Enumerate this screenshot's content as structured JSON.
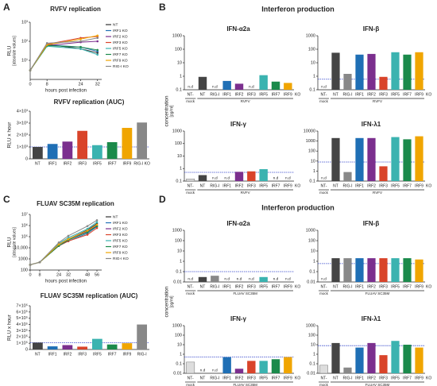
{
  "chart_data": [
    {
      "type": "line",
      "panel": "A",
      "title": "RVFV replication",
      "ylabel": "RLU",
      "ylabel_sub": "[absolute values]",
      "xlabel": "hours post infection",
      "log": true,
      "x": [
        0,
        8,
        24,
        32
      ],
      "xlim": [
        0,
        34
      ],
      "xticks": [
        0,
        8,
        24,
        32
      ],
      "ylim": [
        1,
        1000
      ],
      "yticks": [
        {
          "value": 10,
          "label": "10¹"
        },
        {
          "value": 100,
          "label": "10²"
        },
        {
          "value": 1000,
          "label": "10³"
        }
      ],
      "series": [
        {
          "name": "NT",
          "color": "#333333",
          "values": [
            3,
            70,
            40,
            25
          ]
        },
        {
          "name": "IRF1 KO",
          "color": "#1f6fb5",
          "values": [
            3,
            65,
            50,
            30
          ]
        },
        {
          "name": "IRF2 KO",
          "color": "#7b2f8e",
          "values": [
            3,
            60,
            90,
            100
          ]
        },
        {
          "name": "IRF3 KO",
          "color": "#d9442a",
          "values": [
            3,
            70,
            150,
            180
          ]
        },
        {
          "name": "IRF5 KO",
          "color": "#3bb3b0",
          "values": [
            3,
            55,
            40,
            20
          ]
        },
        {
          "name": "IRF7 KO",
          "color": "#1b8a4b",
          "values": [
            3,
            60,
            50,
            35
          ]
        },
        {
          "name": "IRF9 KO",
          "color": "#f0a500",
          "values": [
            3,
            65,
            130,
            200
          ]
        },
        {
          "name": "RIG-I KO",
          "color": "#888888",
          "values": [
            3,
            80,
            100,
            150
          ]
        }
      ]
    },
    {
      "type": "bar",
      "title": "RVFV replication (AUC)",
      "ylabel": "RLU x hour",
      "categories": [
        "NT",
        "IRF1",
        "IRF2",
        "IRF3",
        "IRF5",
        "IRF7",
        "IRF9",
        "RIG-I KO"
      ],
      "values": [
        1000,
        1250,
        1450,
        2350,
        1150,
        1400,
        2600,
        3050
      ],
      "colors": [
        "#444444",
        "#1f6fb5",
        "#7b2f8e",
        "#d9442a",
        "#3bb3b0",
        "#1b8a4b",
        "#f0a500",
        "#888888"
      ],
      "ylim": [
        0,
        4000
      ],
      "yticks": [
        0,
        {
          "value": 1000,
          "label": "1×10³"
        },
        {
          "value": 2000,
          "label": "2×10³"
        },
        {
          "value": 3000,
          "label": "3×10³"
        },
        {
          "value": 4000,
          "label": "4×10³"
        }
      ],
      "threshold": 1000
    },
    {
      "type": "bar",
      "panel": "B",
      "section_title": "Interferon production",
      "ylabel": "concentration",
      "ylabel_sub": "[pg/ml]",
      "title": "IFN-α2a",
      "log": true,
      "categories": [
        "NT-",
        "NT",
        "RIG-I",
        "IRF1",
        "IRF2",
        "IRF3",
        "IRF5",
        "IRF7",
        "IRF9"
      ],
      "axis_suffix": "KO",
      "group_labels": [
        "mock",
        "RVFV"
      ],
      "values": [
        null,
        0.9,
        null,
        0.45,
        0.28,
        null,
        1.2,
        0.4,
        0.32
      ],
      "value_labels": [
        "n.d",
        null,
        "n.d",
        null,
        null,
        "n.d",
        null,
        null,
        null
      ],
      "colors": [
        "#dddddd",
        "#444444",
        "#888888",
        "#1f6fb5",
        "#7b2f8e",
        "#d9442a",
        "#3bb3b0",
        "#1b8a4b",
        "#f0a500"
      ],
      "ylim": [
        0.1,
        1000
      ],
      "yticks": [
        0.1,
        1,
        10,
        100,
        1000
      ]
    },
    {
      "type": "bar",
      "title": "IFN-β",
      "log": true,
      "categories": [
        "NT-",
        "NT",
        "RIG-I",
        "IRF1",
        "IRF2",
        "IRF3",
        "IRF5",
        "IRF7",
        "IRF9"
      ],
      "axis_suffix": "KO",
      "group_labels": [
        "mock",
        "RVFV"
      ],
      "values": [
        null,
        55,
        1.5,
        40,
        45,
        0.9,
        60,
        40,
        60
      ],
      "value_labels": [
        "n.d",
        null,
        null,
        null,
        null,
        null,
        null,
        null,
        null
      ],
      "colors": [
        "#dddddd",
        "#444444",
        "#888888",
        "#1f6fb5",
        "#7b2f8e",
        "#d9442a",
        "#3bb3b0",
        "#1b8a4b",
        "#f0a500"
      ],
      "ylim": [
        0.1,
        1000
      ],
      "yticks": [
        0.1,
        1,
        10,
        100,
        1000
      ],
      "threshold": 0.6
    },
    {
      "type": "bar",
      "title": "IFN-γ",
      "log": true,
      "categories": [
        "NT-",
        "NT",
        "RIG-I",
        "IRF1",
        "IRF2",
        "IRF3",
        "IRF5",
        "IRF7",
        "IRF9"
      ],
      "axis_suffix": "KO",
      "group_labels": [
        "mock",
        "RVFV"
      ],
      "values": [
        0.15,
        0.3,
        null,
        null,
        0.55,
        0.6,
        0.9,
        null,
        null
      ],
      "value_labels": [
        null,
        null,
        "n.d",
        "n.d",
        null,
        null,
        null,
        "n.d",
        "n.d"
      ],
      "colors": [
        "#dddddd",
        "#444444",
        "#888888",
        "#1f6fb5",
        "#7b2f8e",
        "#d9442a",
        "#3bb3b0",
        "#1b8a4b",
        "#f0a500"
      ],
      "ylim": [
        0.1,
        1000
      ],
      "yticks": [
        0.1,
        1,
        10,
        100,
        1000
      ],
      "threshold": 0.5
    },
    {
      "type": "bar",
      "title": "IFN-λ1",
      "log": true,
      "categories": [
        "NT-",
        "NT",
        "RIG-I",
        "IRF1",
        "IRF2",
        "IRF3",
        "IRF5",
        "IRF7",
        "IRF9"
      ],
      "axis_suffix": "KO",
      "group_labels": [
        "mock",
        "RVFV"
      ],
      "values": [
        null,
        2000,
        0.8,
        2000,
        2000,
        3,
        2500,
        1500,
        3000
      ],
      "value_labels": [
        "n.d",
        null,
        null,
        null,
        null,
        null,
        null,
        null,
        null
      ],
      "colors": [
        "#dddddd",
        "#444444",
        "#888888",
        "#1f6fb5",
        "#7b2f8e",
        "#d9442a",
        "#3bb3b0",
        "#1b8a4b",
        "#f0a500"
      ],
      "ylim": [
        0.1,
        10000
      ],
      "yticks": [
        0.1,
        1,
        10,
        100,
        1000,
        10000
      ],
      "threshold": 8
    },
    {
      "type": "line",
      "panel": "C",
      "title": "FLUAV SC35M replication",
      "ylabel": "RLU",
      "ylabel_sub": "[absolute values]",
      "xlabel": "hours post infection",
      "log": true,
      "x": [
        0,
        8,
        24,
        32,
        48,
        56
      ],
      "xlim": [
        0,
        60
      ],
      "xticks": [
        0,
        8,
        24,
        32,
        48,
        56
      ],
      "ylim": [
        100,
        10000000
      ],
      "yticks": [
        100,
        1000,
        {
          "value": 10000,
          "label": "10,000"
        },
        {
          "value": 100000,
          "label": "10⁵"
        },
        {
          "value": 1000000,
          "label": "10⁶"
        },
        {
          "value": 10000000,
          "label": "10⁷"
        }
      ],
      "series": [
        {
          "name": "NT",
          "color": "#333333",
          "values": [
            300,
            500,
            20000,
            60000,
            400000,
            1500000
          ]
        },
        {
          "name": "IRF1 KO",
          "color": "#1f6fb5",
          "values": [
            300,
            500,
            15000,
            40000,
            200000,
            800000
          ]
        },
        {
          "name": "IRF2 KO",
          "color": "#7b2f8e",
          "values": [
            300,
            500,
            20000,
            50000,
            300000,
            1000000
          ]
        },
        {
          "name": "IRF3 KO",
          "color": "#d9442a",
          "values": [
            300,
            500,
            15000,
            40000,
            150000,
            600000
          ]
        },
        {
          "name": "IRF5 KO",
          "color": "#3bb3b0",
          "values": [
            300,
            500,
            25000,
            80000,
            500000,
            2000000
          ]
        },
        {
          "name": "IRF7 KO",
          "color": "#1b8a4b",
          "values": [
            300,
            500,
            15000,
            50000,
            250000,
            900000
          ]
        },
        {
          "name": "IRF9 KO",
          "color": "#f0a500",
          "values": [
            300,
            500,
            20000,
            60000,
            350000,
            1200000
          ]
        },
        {
          "name": "RIG-I KO",
          "color": "#888888",
          "values": [
            300,
            500,
            30000,
            120000,
            900000,
            3000000
          ]
        }
      ]
    },
    {
      "type": "bar",
      "title": "FLUAV SC35M replication (AUC)",
      "ylabel": "RLU x hour",
      "categories": [
        "NT",
        "IRF1",
        "IRF2",
        "IRF3",
        "IRF5",
        "IRF7",
        "IRF9",
        "RIG-I"
      ],
      "values": [
        110000,
        50000,
        70000,
        45000,
        170000,
        80000,
        100000,
        400000
      ],
      "colors": [
        "#444444",
        "#1f6fb5",
        "#7b2f8e",
        "#d9442a",
        "#3bb3b0",
        "#1b8a4b",
        "#f0a500",
        "#888888"
      ],
      "ylim": [
        0,
        700000
      ],
      "yticks": [
        0,
        {
          "value": 100000,
          "label": "1×10⁵"
        },
        {
          "value": 200000,
          "label": "2×10⁵"
        },
        {
          "value": 300000,
          "label": "3×10⁵"
        },
        {
          "value": 400000,
          "label": "4×10⁵"
        },
        {
          "value": 500000,
          "label": "5×10⁵"
        },
        {
          "value": 600000,
          "label": "6×10⁵"
        },
        {
          "value": 700000,
          "label": "7×10⁵"
        }
      ],
      "threshold": 110000
    },
    {
      "type": "bar",
      "panel": "D",
      "section_title": "Interferon production",
      "ylabel": "concentration",
      "ylabel_sub": "[pg/ml]",
      "title": "IFN-α2a",
      "log": true,
      "categories": [
        "NT-",
        "NT",
        "RIG-I",
        "IRF1",
        "IRF2",
        "IRF3",
        "IRF5",
        "IRF7",
        "IRF9"
      ],
      "axis_suffix": "KO",
      "group_labels": [
        "mock",
        "FLUAV SC35M"
      ],
      "values": [
        null,
        0.03,
        0.04,
        null,
        null,
        null,
        0.03,
        null,
        null
      ],
      "value_labels": [
        "n.d",
        null,
        null,
        "n.d",
        "n.d",
        "n.d",
        null,
        "n.d",
        "n.d"
      ],
      "colors": [
        "#dddddd",
        "#444444",
        "#888888",
        "#1f6fb5",
        "#7b2f8e",
        "#d9442a",
        "#3bb3b0",
        "#1b8a4b",
        "#f0a500"
      ],
      "ylim": [
        0.01,
        1000
      ],
      "yticks": [
        0.01,
        0.1,
        1,
        10,
        100,
        1000
      ],
      "threshold": 0.1
    },
    {
      "type": "bar",
      "title": "IFN-β",
      "log": true,
      "categories": [
        "NT-",
        "NT",
        "RIG-I",
        "IRF1",
        "IRF2",
        "IRF3",
        "IRF5",
        "IRF7",
        "IRF9"
      ],
      "axis_suffix": "KO",
      "group_labels": [
        "mock",
        "FLUAV SC35M"
      ],
      "values": [
        null,
        2,
        2,
        2,
        2,
        2,
        2,
        2,
        1.5
      ],
      "value_labels": [
        "n.d",
        null,
        null,
        null,
        null,
        null,
        null,
        null,
        null
      ],
      "colors": [
        "#dddddd",
        "#444444",
        "#888888",
        "#1f6fb5",
        "#7b2f8e",
        "#d9442a",
        "#3bb3b0",
        "#1b8a4b",
        "#f0a500"
      ],
      "ylim": [
        0.01,
        1000
      ],
      "yticks": [
        0.01,
        0.1,
        1,
        10,
        100,
        1000
      ],
      "threshold": 0.6
    },
    {
      "type": "bar",
      "title": "IFN-γ",
      "log": true,
      "categories": [
        "NT-",
        "NT",
        "RIG-I",
        "IRF1",
        "IRF2",
        "IRF3",
        "IRF5",
        "IRF7",
        "IRF9"
      ],
      "axis_suffix": "KO",
      "group_labels": [
        "mock",
        "FLUAV SC35M"
      ],
      "values": [
        0.15,
        null,
        null,
        0.5,
        0.03,
        0.2,
        0.2,
        0.3,
        0.5
      ],
      "value_labels": [
        null,
        "n.d",
        "n.d",
        null,
        null,
        null,
        null,
        null,
        null
      ],
      "colors": [
        "#dddddd",
        "#444444",
        "#888888",
        "#1f6fb5",
        "#7b2f8e",
        "#d9442a",
        "#3bb3b0",
        "#1b8a4b",
        "#f0a500"
      ],
      "ylim": [
        0.01,
        1000
      ],
      "yticks": [
        0.01,
        0.1,
        1,
        10,
        100,
        1000
      ],
      "threshold": 0.5
    },
    {
      "type": "bar",
      "title": "IFN-λ1",
      "log": true,
      "categories": [
        "NT-",
        "NT",
        "RIG-I",
        "IRF1",
        "IRF2",
        "IRF3",
        "IRF5",
        "IRF7",
        "IRF9"
      ],
      "axis_suffix": "KO",
      "group_labels": [
        "mock",
        "FLUAV SC35M"
      ],
      "values": [
        0.07,
        15,
        0.04,
        5,
        15,
        0.8,
        25,
        10,
        5
      ],
      "colors": [
        "#dddddd",
        "#444444",
        "#888888",
        "#1f6fb5",
        "#7b2f8e",
        "#d9442a",
        "#3bb3b0",
        "#1b8a4b",
        "#f0a500"
      ],
      "ylim": [
        0.01,
        1000
      ],
      "yticks": [
        0.01,
        0.1,
        1,
        10,
        100,
        1000
      ],
      "threshold": 8
    }
  ]
}
